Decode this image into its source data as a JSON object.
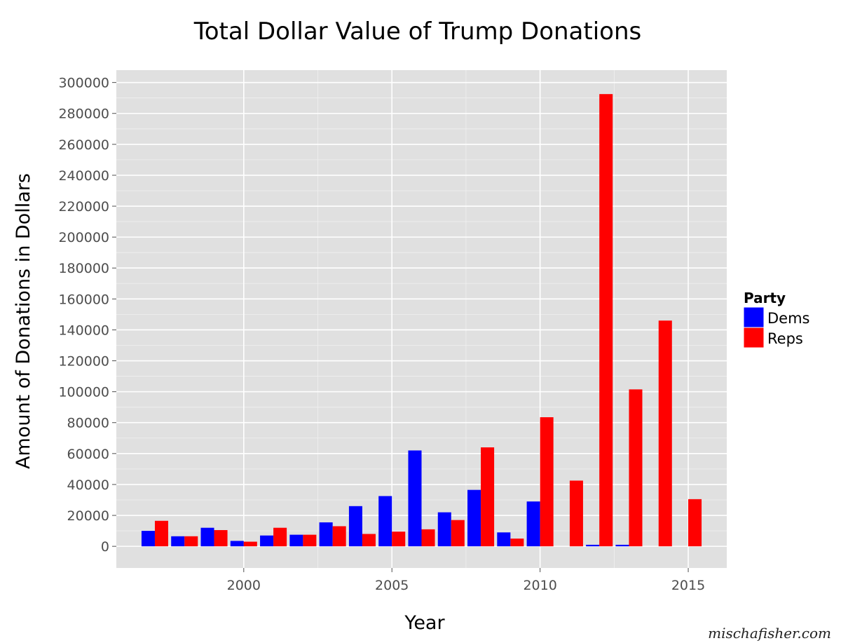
{
  "chart_data": {
    "type": "bar",
    "title": "Total Dollar Value of Trump Donations",
    "xlabel": "Year",
    "ylabel": "Amount of Donations in Dollars",
    "x": [
      1997,
      1998,
      1999,
      2000,
      2001,
      2002,
      2003,
      2004,
      2005,
      2006,
      2007,
      2008,
      2009,
      2010,
      2011,
      2012,
      2013,
      2014,
      2015
    ],
    "series": [
      {
        "name": "Dems",
        "color": "#0000ff",
        "values": [
          10000,
          6500,
          12000,
          3500,
          7000,
          7500,
          15500,
          26000,
          32500,
          62000,
          22000,
          36500,
          9000,
          29000,
          null,
          1000,
          1000,
          null,
          null
        ]
      },
      {
        "name": "Reps",
        "color": "#ff0000",
        "values": [
          16500,
          6500,
          10500,
          3000,
          12000,
          7500,
          13000,
          8000,
          9500,
          11000,
          17000,
          64000,
          5000,
          83500,
          42500,
          292500,
          101500,
          146000,
          30500
        ]
      }
    ],
    "xlim": [
      1995.7,
      2016.3
    ],
    "ylim": [
      -14000,
      308000
    ],
    "x_ticks": [
      "2000",
      "2005",
      "2010",
      "2015"
    ],
    "y_ticks": [
      "0",
      "20000",
      "40000",
      "60000",
      "80000",
      "100000",
      "120000",
      "140000",
      "160000",
      "180000",
      "200000",
      "220000",
      "240000",
      "260000",
      "280000",
      "300000"
    ],
    "legend": {
      "title": "Party",
      "position": "right"
    },
    "panel_background": "#e0e0e0",
    "grid": true
  },
  "watermark": "mischafisher.com"
}
